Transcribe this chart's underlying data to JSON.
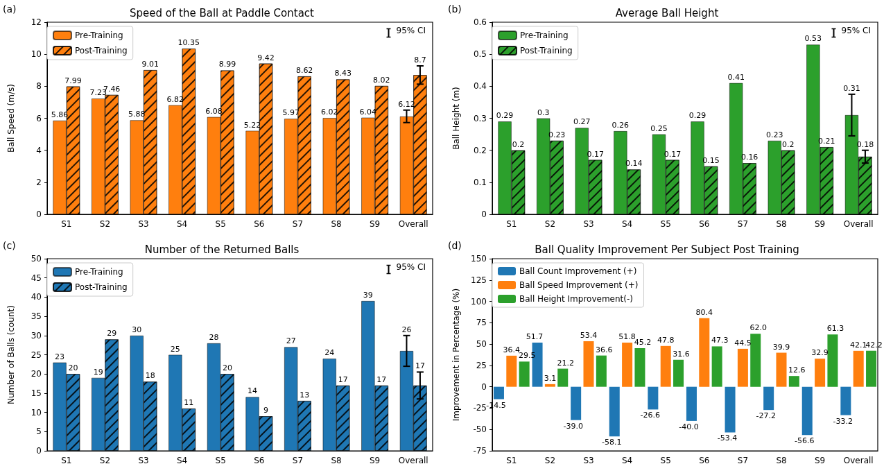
{
  "chart_data": [
    {
      "type": "bar",
      "title": "Speed of the Ball at Paddle Contact",
      "ylabel": "Ball Speed (m/s)",
      "annotations": [
        "(a)",
        "95% CI"
      ],
      "categories": [
        "S1",
        "S2",
        "S3",
        "S4",
        "S5",
        "S6",
        "S7",
        "S8",
        "S9",
        "Overall"
      ],
      "series": [
        {
          "name": "Pre-Training",
          "color": "#ff7f0e",
          "values": [
            5.86,
            7.23,
            5.88,
            6.82,
            6.08,
            5.22,
            5.97,
            6.02,
            6.04,
            6.12
          ],
          "errors": [
            null,
            null,
            null,
            null,
            null,
            null,
            null,
            null,
            null,
            0.39
          ]
        },
        {
          "name": "Post-Training",
          "color": "#ff7f0e",
          "values": [
            7.99,
            7.46,
            9.01,
            10.35,
            8.99,
            9.42,
            8.62,
            8.43,
            8.02,
            8.7
          ],
          "errors": [
            null,
            null,
            null,
            null,
            null,
            null,
            null,
            null,
            null,
            0.57
          ]
        }
      ],
      "ylim": [
        0,
        12
      ],
      "yticks": [
        0,
        2,
        4,
        6,
        8,
        10,
        12
      ],
      "data_labels": true,
      "legend": "top left",
      "grid": false
    },
    {
      "type": "bar",
      "title": "Average Ball Height",
      "ylabel": "Ball Height (m)",
      "annotations": [
        "(b)",
        "95% CI"
      ],
      "categories": [
        "S1",
        "S2",
        "S3",
        "S4",
        "S5",
        "S6",
        "S7",
        "S8",
        "S9",
        "Overall"
      ],
      "series": [
        {
          "name": "Pre-Training",
          "color": "#2ca02c",
          "values": [
            0.29,
            0.3,
            0.27,
            0.26,
            0.25,
            0.29,
            0.41,
            0.23,
            0.53,
            0.31
          ],
          "errors": [
            null,
            null,
            null,
            null,
            null,
            null,
            null,
            null,
            null,
            0.065
          ]
        },
        {
          "name": "Post-Training",
          "color": "#2ca02c",
          "values": [
            0.2,
            0.23,
            0.17,
            0.14,
            0.17,
            0.15,
            0.16,
            0.2,
            0.21,
            0.18
          ],
          "errors": [
            null,
            null,
            null,
            null,
            null,
            null,
            null,
            null,
            null,
            0.02
          ]
        }
      ],
      "ylim": [
        0,
        0.6
      ],
      "yticks": [
        0.0,
        0.1,
        0.2,
        0.3,
        0.4,
        0.5,
        0.6
      ],
      "data_labels": true,
      "legend": "top left",
      "grid": false
    },
    {
      "type": "bar",
      "title": "Number of the Returned Balls",
      "ylabel": "Number of Balls (count)",
      "annotations": [
        "(c)",
        "95% CI"
      ],
      "categories": [
        "S1",
        "S2",
        "S3",
        "S4",
        "S5",
        "S6",
        "S7",
        "S8",
        "S9",
        "Overall"
      ],
      "series": [
        {
          "name": "Pre-Training",
          "color": "#1f77b4",
          "values": [
            23,
            19,
            30,
            25,
            28,
            14,
            27,
            24,
            39,
            26
          ],
          "errors": [
            null,
            null,
            null,
            null,
            null,
            null,
            null,
            null,
            null,
            4
          ]
        },
        {
          "name": "Post-Training",
          "color": "#1f77b4",
          "values": [
            20,
            29,
            18,
            11,
            20,
            9,
            13,
            17,
            17,
            17
          ],
          "errors": [
            null,
            null,
            null,
            null,
            null,
            null,
            null,
            null,
            null,
            3.5
          ]
        }
      ],
      "ylim": [
        0,
        50
      ],
      "yticks": [
        0,
        5,
        10,
        15,
        20,
        25,
        30,
        35,
        40,
        45,
        50
      ],
      "data_labels": true,
      "legend": "top left",
      "grid": false
    },
    {
      "type": "bar",
      "title": "Ball Quality Improvement Per Subject Post Training",
      "ylabel": "Improvement in Percentage (%)",
      "annotations": [
        "(d)"
      ],
      "categories": [
        "S1",
        "S2",
        "S3",
        "S4",
        "S5",
        "S6",
        "S7",
        "S8",
        "S9",
        "Overall"
      ],
      "series": [
        {
          "name": "Ball Count Improvement (+)",
          "color": "#1f77b4",
          "values": [
            -14.5,
            51.7,
            -39.0,
            -58.1,
            -26.6,
            -40.0,
            -53.4,
            -27.2,
            -56.6,
            -33.2
          ],
          "value_labels": [
            "-14.5",
            "51.7",
            "-39.0",
            "-58.1",
            "-26.6",
            "-40.0",
            "-53.4",
            "-27.2",
            "-56.6",
            "-33.2"
          ]
        },
        {
          "name": "Ball Speed Improvement (+)",
          "color": "#ff7f0e",
          "values": [
            36.4,
            3.1,
            53.4,
            51.8,
            47.8,
            80.4,
            44.5,
            39.9,
            32.9,
            42.1
          ],
          "value_labels": [
            "36.4",
            "3.1",
            "53.4",
            "51.8",
            "47.8",
            "80.4",
            "44.5",
            "39.9",
            "32.9",
            "42.1"
          ]
        },
        {
          "name": "Ball Height Improvement(-)",
          "color": "#2ca02c",
          "values": [
            29.5,
            21.2,
            36.6,
            45.2,
            31.6,
            47.3,
            62.0,
            12.6,
            61.3,
            42.2
          ],
          "value_labels": [
            "29.5",
            "21.2",
            "36.6",
            "45.2",
            "31.6",
            "47.3",
            "62.0",
            "12.6",
            "61.3",
            "42.2"
          ]
        }
      ],
      "ylim": [
        -75,
        150
      ],
      "yticks": [
        -75,
        -50,
        -25,
        0,
        25,
        50,
        75,
        100,
        125,
        150
      ],
      "legend": "top left",
      "grid": false
    }
  ]
}
